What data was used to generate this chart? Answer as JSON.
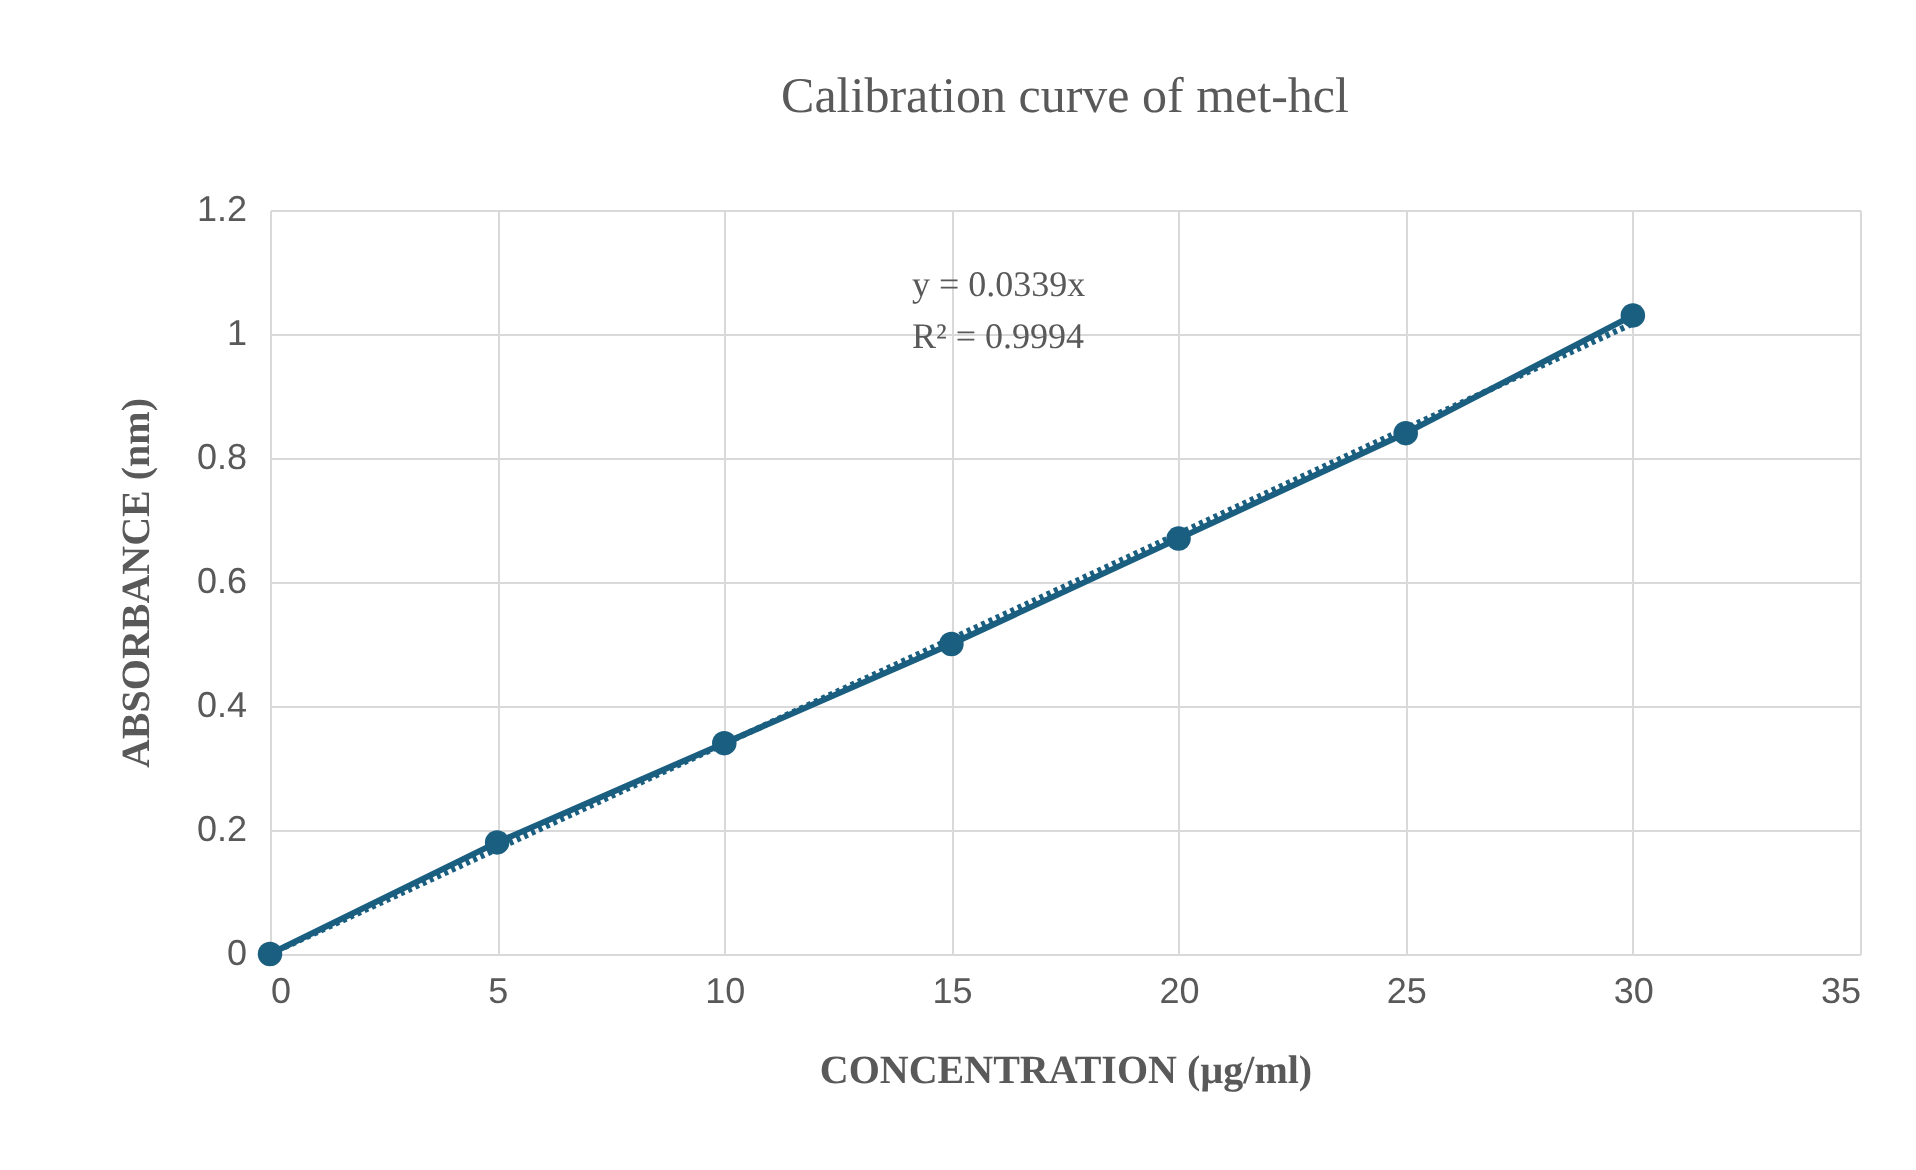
{
  "chart_data": {
    "type": "line",
    "title": "Calibration curve of met-hcl",
    "xlabel": "CONCENTRATION  (µg/ml)",
    "ylabel": "ABSORBANCE (nm)",
    "x": [
      0,
      5,
      10,
      15,
      20,
      25,
      30
    ],
    "series": [
      {
        "color": "#1a5e80",
        "values": [
          0,
          0.18,
          0.34,
          0.5,
          0.67,
          0.84,
          1.03
        ]
      },
      {
        "type": "line",
        "color": "#1a5e80",
        "x": [
          0,
          30
        ],
        "values": [
          0,
          1.017
        ],
        "line_style": "dotted",
        "marker": "none"
      }
    ],
    "annotations": [
      "y = 0.0339x",
      "R² = 0.9994"
    ],
    "xlim": [
      0,
      35
    ],
    "xticks": [
      0,
      5,
      10,
      15,
      20,
      25,
      30,
      35
    ],
    "ylim": [
      0,
      1.2
    ],
    "yticks": [
      0,
      0.2,
      0.4,
      0.6,
      0.8,
      1,
      1.2
    ],
    "grid": true,
    "marker": "circle",
    "line_style": "solid"
  }
}
